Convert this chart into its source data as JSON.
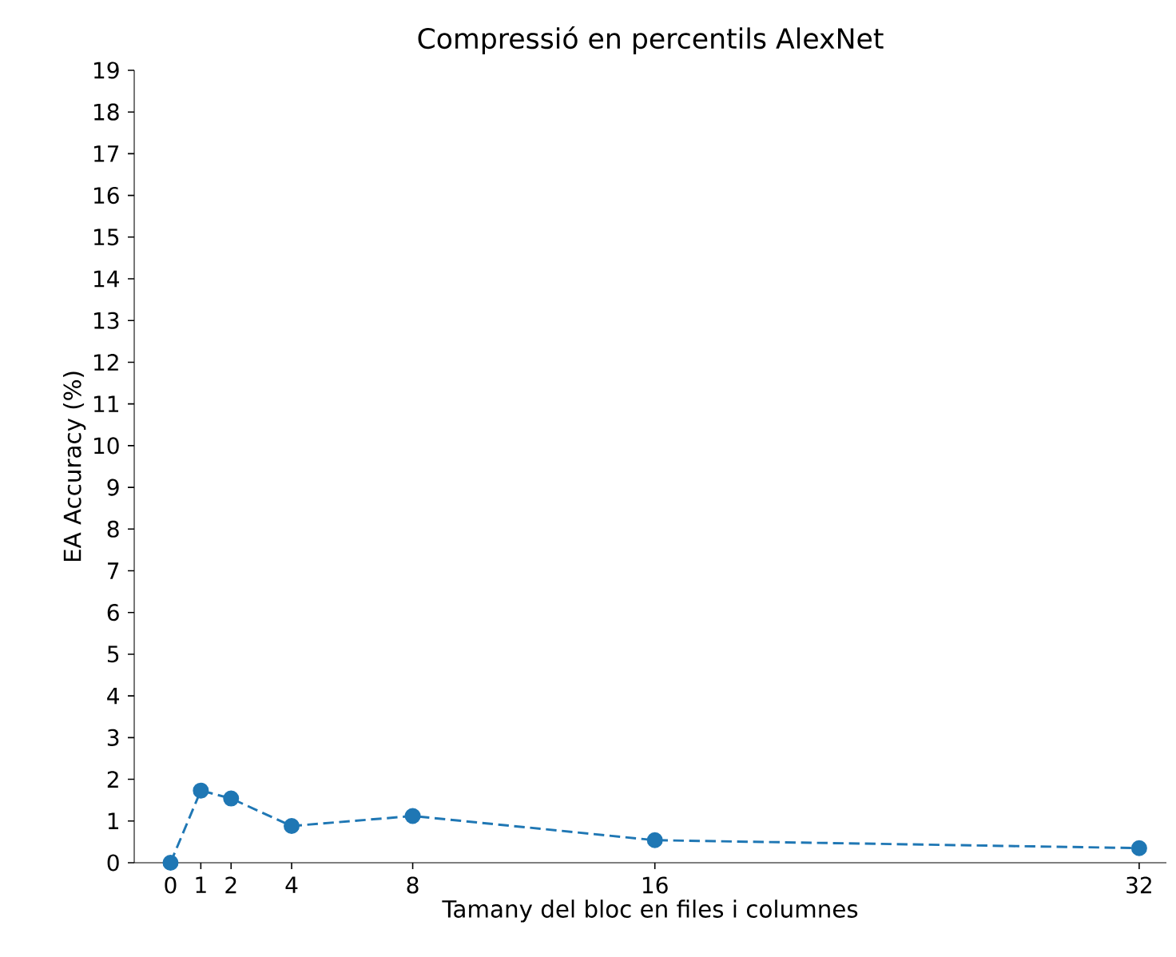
{
  "chart_data": {
    "type": "line",
    "title": "Compressió en percentils AlexNet",
    "xlabel": "Tamany del bloc en files i columnes",
    "ylabel": "EA Accuracy (%)",
    "x": [
      0,
      1,
      2,
      4,
      8,
      16,
      32
    ],
    "series": [
      {
        "color": "#1f77b4",
        "values": [
          0,
          1.73,
          1.54,
          0.88,
          1.12,
          0.54,
          0.35
        ]
      }
    ],
    "xlim": [
      -1.2,
      32.9
    ],
    "ylim": [
      0,
      19
    ],
    "xticks": [
      0,
      1,
      2,
      4,
      8,
      16,
      32
    ],
    "yticks": [
      0,
      1,
      2,
      3,
      4,
      5,
      6,
      7,
      8,
      9,
      10,
      11,
      12,
      13,
      14,
      15,
      16,
      17,
      18,
      19
    ],
    "grid": false,
    "marker": "circle",
    "line_style": "dashed"
  }
}
